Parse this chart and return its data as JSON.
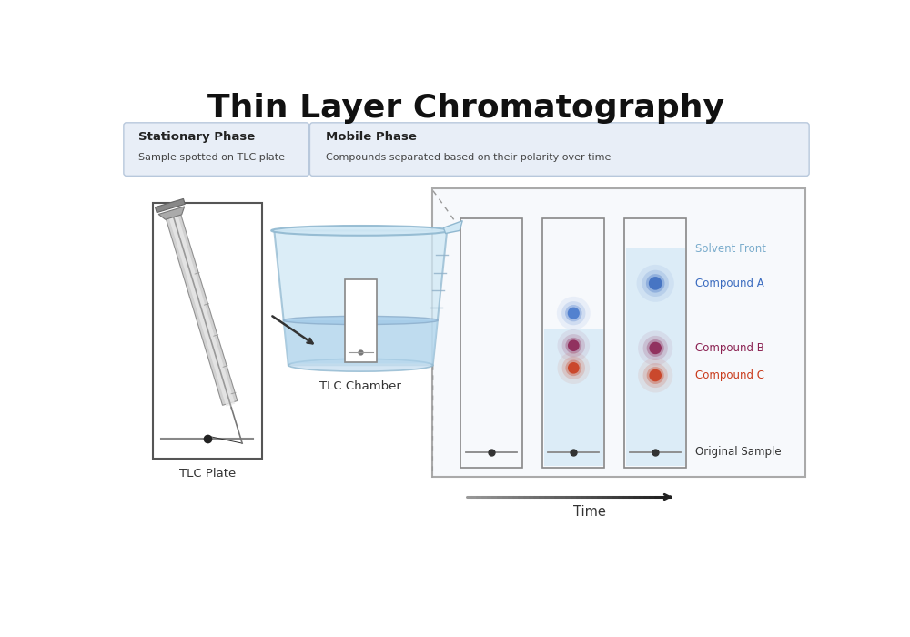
{
  "title": "Thin Layer Chromatography",
  "title_fontsize": 26,
  "title_fontweight": "bold",
  "bg_color": "#ffffff",
  "stat_phase_title": "Stationary Phase",
  "stat_phase_sub": "Sample spotted on TLC plate",
  "mob_phase_title": "Mobile Phase",
  "mob_phase_sub": "Compounds separated based on their polarity over time",
  "tlc_plate_label": "TLC Plate",
  "tlc_chamber_label": "TLC Chamber",
  "time_label": "Time",
  "solvent_front_label": "Solvent Front",
  "compound_a_label": "Compound A",
  "compound_b_label": "Compound B",
  "compound_c_label": "Compound C",
  "original_sample_label": "Original Sample",
  "compound_a_color": "#3a6bbf",
  "compound_b_color": "#8b2252",
  "compound_c_color": "#c93a1a",
  "solvent_fill_color": "#d8eaf7",
  "solvent_front_label_color": "#7aaccc",
  "compound_a_label_color": "#3a6bbf",
  "compound_b_label_color": "#8b2252",
  "compound_c_label_color": "#c93a1a",
  "header_box_color": "#e8eef7",
  "header_border_color": "#b8c8dc",
  "beaker_body_color": "#d0e8f5",
  "beaker_edge_color": "#90b8d0",
  "liquid_color": "#b0d4ec",
  "outer_box_bg": "#f7f9fc",
  "outer_box_edge": "#aaaaaa",
  "panel_bg": "#ffffff",
  "panel_edge": "#888888"
}
